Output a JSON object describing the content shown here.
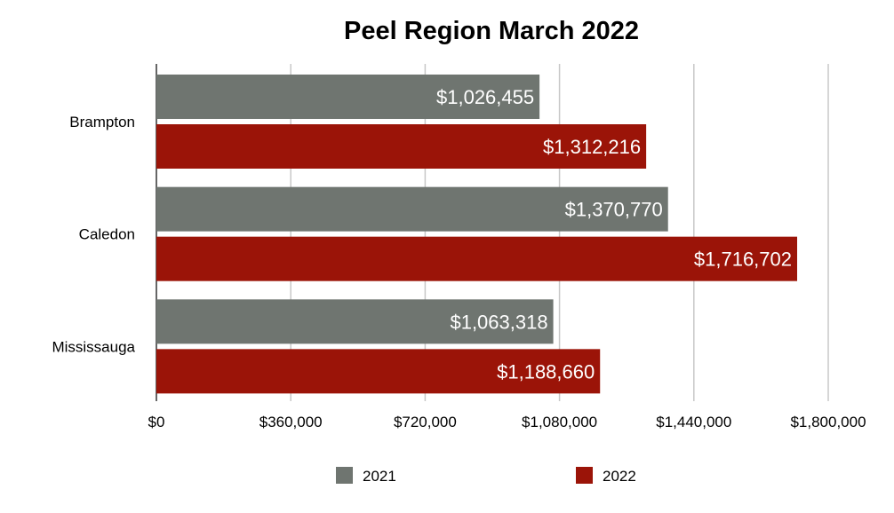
{
  "chart_data": {
    "type": "bar",
    "orientation": "horizontal",
    "title": "Peel Region March 2022",
    "categories": [
      "Brampton",
      "Caledon",
      "Mississauga"
    ],
    "series": [
      {
        "name": "2021",
        "color": "#6f7570",
        "values": [
          1026455,
          1370770,
          1063318
        ],
        "labels": [
          "$1,026,455",
          "$1,370,770",
          "$1,063,318"
        ]
      },
      {
        "name": "2022",
        "color": "#9b1408",
        "values": [
          1312216,
          1716702,
          1188660
        ],
        "labels": [
          "$1,312,216",
          "$1,716,702",
          "$1,188,660"
        ]
      }
    ],
    "xlim": [
      0,
      1800000
    ],
    "xticks": [
      0,
      360000,
      720000,
      1080000,
      1440000,
      1800000
    ],
    "xtick_labels": [
      "$0",
      "$360,000",
      "$720,000",
      "$1,080,000",
      "$1,440,000",
      "$1,800,000"
    ],
    "grid": true,
    "legend_position": "bottom"
  }
}
